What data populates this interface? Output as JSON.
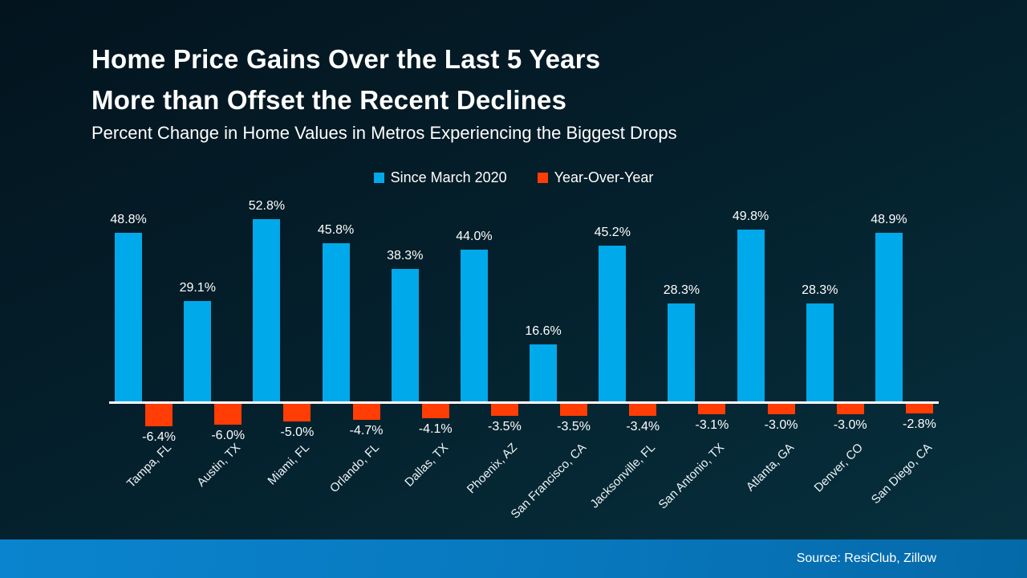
{
  "chart_data": {
    "type": "bar",
    "title_line1": "Home Price Gains Over the Last 5 Years",
    "title_line2": "More than Offset the Recent Declines",
    "subtitle": "Percent Change in Home Values in Metros Experiencing the Biggest Drops",
    "categories": [
      "Tampa, FL",
      "Austin, TX",
      "Miami, FL",
      "Orlando, FL",
      "Dallas, TX",
      "Phoenix, AZ",
      "San Francisco, CA",
      "Jacksonville, FL",
      "San Antonio, TX",
      "Atlanta, GA",
      "Denver, CO",
      "San Diego, CA"
    ],
    "series": [
      {
        "name": "Since March 2020",
        "color": "#00A9EA",
        "values": [
          48.8,
          29.1,
          52.8,
          45.8,
          38.3,
          44.0,
          16.6,
          45.2,
          28.3,
          49.8,
          28.3,
          48.9
        ]
      },
      {
        "name": "Year-Over-Year",
        "color": "#FF3D05",
        "values": [
          -6.4,
          -6.0,
          -5.0,
          -4.7,
          -4.1,
          -3.5,
          -3.5,
          -3.4,
          -3.1,
          -3.0,
          -3.0,
          -2.8
        ]
      }
    ],
    "value_suffix": "%",
    "ylim": [
      -8,
      56
    ],
    "grid": false,
    "legend_position": "top-center",
    "baseline_color": "#FFFFFF",
    "xlabel": "",
    "ylabel": ""
  },
  "footer": {
    "source": "Source: ResiClub, Zillow"
  },
  "colors": {
    "background_top": "#03141E",
    "background_bottom": "#07313F",
    "footer_left": "#0A84CE",
    "footer_right": "#0569A8",
    "positive_bar": "#00A9EA",
    "negative_bar": "#FF3D05",
    "text": "#FFFFFF"
  }
}
